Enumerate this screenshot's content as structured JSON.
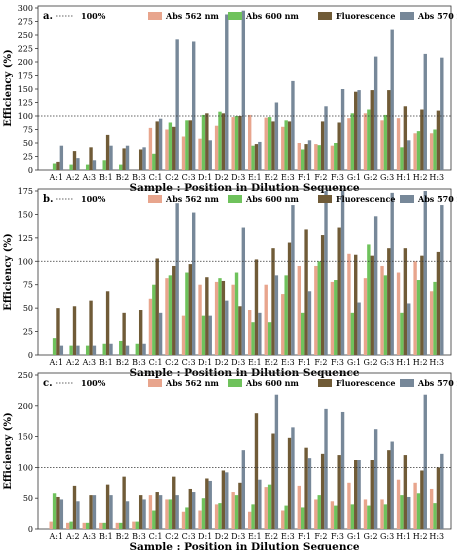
{
  "chart_data": [
    {
      "type": "bar",
      "panel_label": "a.",
      "title": "",
      "xlabel": "Sample : Position in Dilution Sequence",
      "ylabel": "Efficiency (%)",
      "ylim": [
        0,
        300
      ],
      "yticks": [
        0,
        25,
        50,
        75,
        100,
        125,
        150,
        175,
        200,
        225,
        250,
        275,
        300
      ],
      "reference_line": {
        "name": "100%",
        "value": 100
      },
      "legend_position": "top",
      "categories": [
        "A:1",
        "A:2",
        "A:3",
        "B:1",
        "B:2",
        "B:3",
        "C:1",
        "C:2",
        "C:3",
        "D:1",
        "D:2",
        "D:3",
        "E:1",
        "E:2",
        "E:3",
        "F:1",
        "F:2",
        "F:3",
        "G:1",
        "G:2",
        "G:3",
        "H:1",
        "H:2",
        "H:3"
      ],
      "series": [
        {
          "name": "Abs 562 nm",
          "color": "#e8a58d",
          "values": [
            0,
            0,
            0,
            0,
            0,
            0,
            78,
            75,
            62,
            58,
            82,
            98,
            102,
            97,
            80,
            50,
            48,
            45,
            96,
            105,
            92,
            96,
            68,
            68
          ]
        },
        {
          "name": "Abs 600 nm",
          "color": "#6fc25c",
          "values": [
            12,
            10,
            10,
            18,
            10,
            0,
            30,
            88,
            92,
            102,
            108,
            100,
            45,
            98,
            92,
            38,
            46,
            50,
            105,
            112,
            102,
            42,
            72,
            75
          ]
        },
        {
          "name": "Fluorescence",
          "color": "#705b37",
          "values": [
            15,
            35,
            42,
            65,
            40,
            38,
            90,
            80,
            92,
            105,
            105,
            100,
            48,
            90,
            90,
            48,
            90,
            88,
            145,
            148,
            148,
            118,
            112,
            110
          ]
        },
        {
          "name": "Abs 570 nm",
          "color": "#778899",
          "values": [
            45,
            22,
            18,
            45,
            45,
            42,
            95,
            242,
            238,
            55,
            288,
            295,
            52,
            125,
            165,
            55,
            118,
            150,
            148,
            210,
            260,
            55,
            215,
            208
          ]
        }
      ]
    },
    {
      "type": "bar",
      "panel_label": "b.",
      "title": "",
      "xlabel": "Sample : Position in Dilution Sequence",
      "ylabel": "Efficiency (%)",
      "ylim": [
        0,
        175
      ],
      "yticks": [
        0,
        25,
        50,
        75,
        100,
        125,
        150,
        175
      ],
      "reference_line": {
        "name": "100%",
        "value": 100
      },
      "legend_position": "top",
      "categories": [
        "A:1",
        "A:2",
        "A:3",
        "B:1",
        "B:2",
        "B:3",
        "C:1",
        "C:2",
        "C:3",
        "D:1",
        "D:2",
        "D:3",
        "E:1",
        "E:2",
        "E:3",
        "F:1",
        "F:2",
        "F:3",
        "G:1",
        "G:2",
        "G:3",
        "H:1",
        "H:2",
        "H:3"
      ],
      "series": [
        {
          "name": "Abs 562 nm",
          "color": "#e8a58d",
          "values": [
            0,
            0,
            0,
            0,
            0,
            0,
            60,
            82,
            42,
            75,
            78,
            75,
            48,
            75,
            65,
            95,
            95,
            78,
            108,
            82,
            95,
            88,
            100,
            68
          ]
        },
        {
          "name": "Abs 600 nm",
          "color": "#6fc25c",
          "values": [
            18,
            10,
            10,
            12,
            15,
            12,
            75,
            85,
            88,
            42,
            82,
            88,
            35,
            35,
            85,
            45,
            100,
            80,
            45,
            118,
            85,
            45,
            80,
            78
          ]
        },
        {
          "name": "Fluorescence",
          "color": "#705b37",
          "values": [
            50,
            52,
            58,
            68,
            45,
            48,
            103,
            95,
            97,
            83,
            79,
            52,
            102,
            114,
            120,
            134,
            128,
            136,
            107,
            106,
            114,
            114,
            106,
            110
          ]
        },
        {
          "name": "Abs 570 nm",
          "color": "#778899",
          "values": [
            10,
            10,
            10,
            12,
            10,
            12,
            45,
            162,
            152,
            42,
            58,
            136,
            45,
            85,
            160,
            68,
            175,
            175,
            56,
            148,
            173,
            55,
            175,
            160
          ]
        }
      ]
    },
    {
      "type": "bar",
      "panel_label": "c.",
      "title": "",
      "xlabel": "Sample : Position in Dilution Sequence",
      "ylabel": "Efficiency (%)",
      "ylim": [
        0,
        250
      ],
      "yticks": [
        0,
        50,
        100,
        150,
        200,
        250
      ],
      "reference_line": {
        "name": "100%",
        "value": 100
      },
      "legend_position": "top",
      "categories": [
        "A:1",
        "A:2",
        "A:3",
        "B:1",
        "B:2",
        "B:3",
        "C:1",
        "C:2",
        "C:3",
        "D:1",
        "D:2",
        "D:3",
        "E:1",
        "E:2",
        "E:3",
        "F:1",
        "F:2",
        "F:3",
        "G:1",
        "G:2",
        "G:3",
        "H:1",
        "H:2",
        "H:3"
      ],
      "series": [
        {
          "name": "Abs 562 nm",
          "color": "#e8a58d",
          "values": [
            12,
            10,
            10,
            10,
            10,
            12,
            55,
            48,
            28,
            30,
            40,
            60,
            28,
            68,
            30,
            70,
            48,
            45,
            75,
            48,
            48,
            80,
            75,
            65
          ]
        },
        {
          "name": "Abs 600 nm",
          "color": "#6fc25c",
          "values": [
            58,
            12,
            10,
            10,
            10,
            12,
            30,
            48,
            35,
            50,
            42,
            55,
            40,
            72,
            38,
            35,
            55,
            38,
            40,
            38,
            40,
            55,
            58,
            42
          ]
        },
        {
          "name": "Fluorescence",
          "color": "#705b37",
          "values": [
            52,
            70,
            55,
            72,
            85,
            55,
            60,
            85,
            65,
            82,
            95,
            75,
            188,
            155,
            148,
            132,
            122,
            120,
            112,
            112,
            128,
            120,
            95,
            100
          ]
        },
        {
          "name": "Abs 570 nm",
          "color": "#778899",
          "values": [
            48,
            45,
            55,
            55,
            45,
            48,
            55,
            55,
            60,
            78,
            92,
            128,
            80,
            218,
            165,
            115,
            195,
            190,
            112,
            162,
            142,
            52,
            218,
            122
          ]
        }
      ]
    }
  ]
}
